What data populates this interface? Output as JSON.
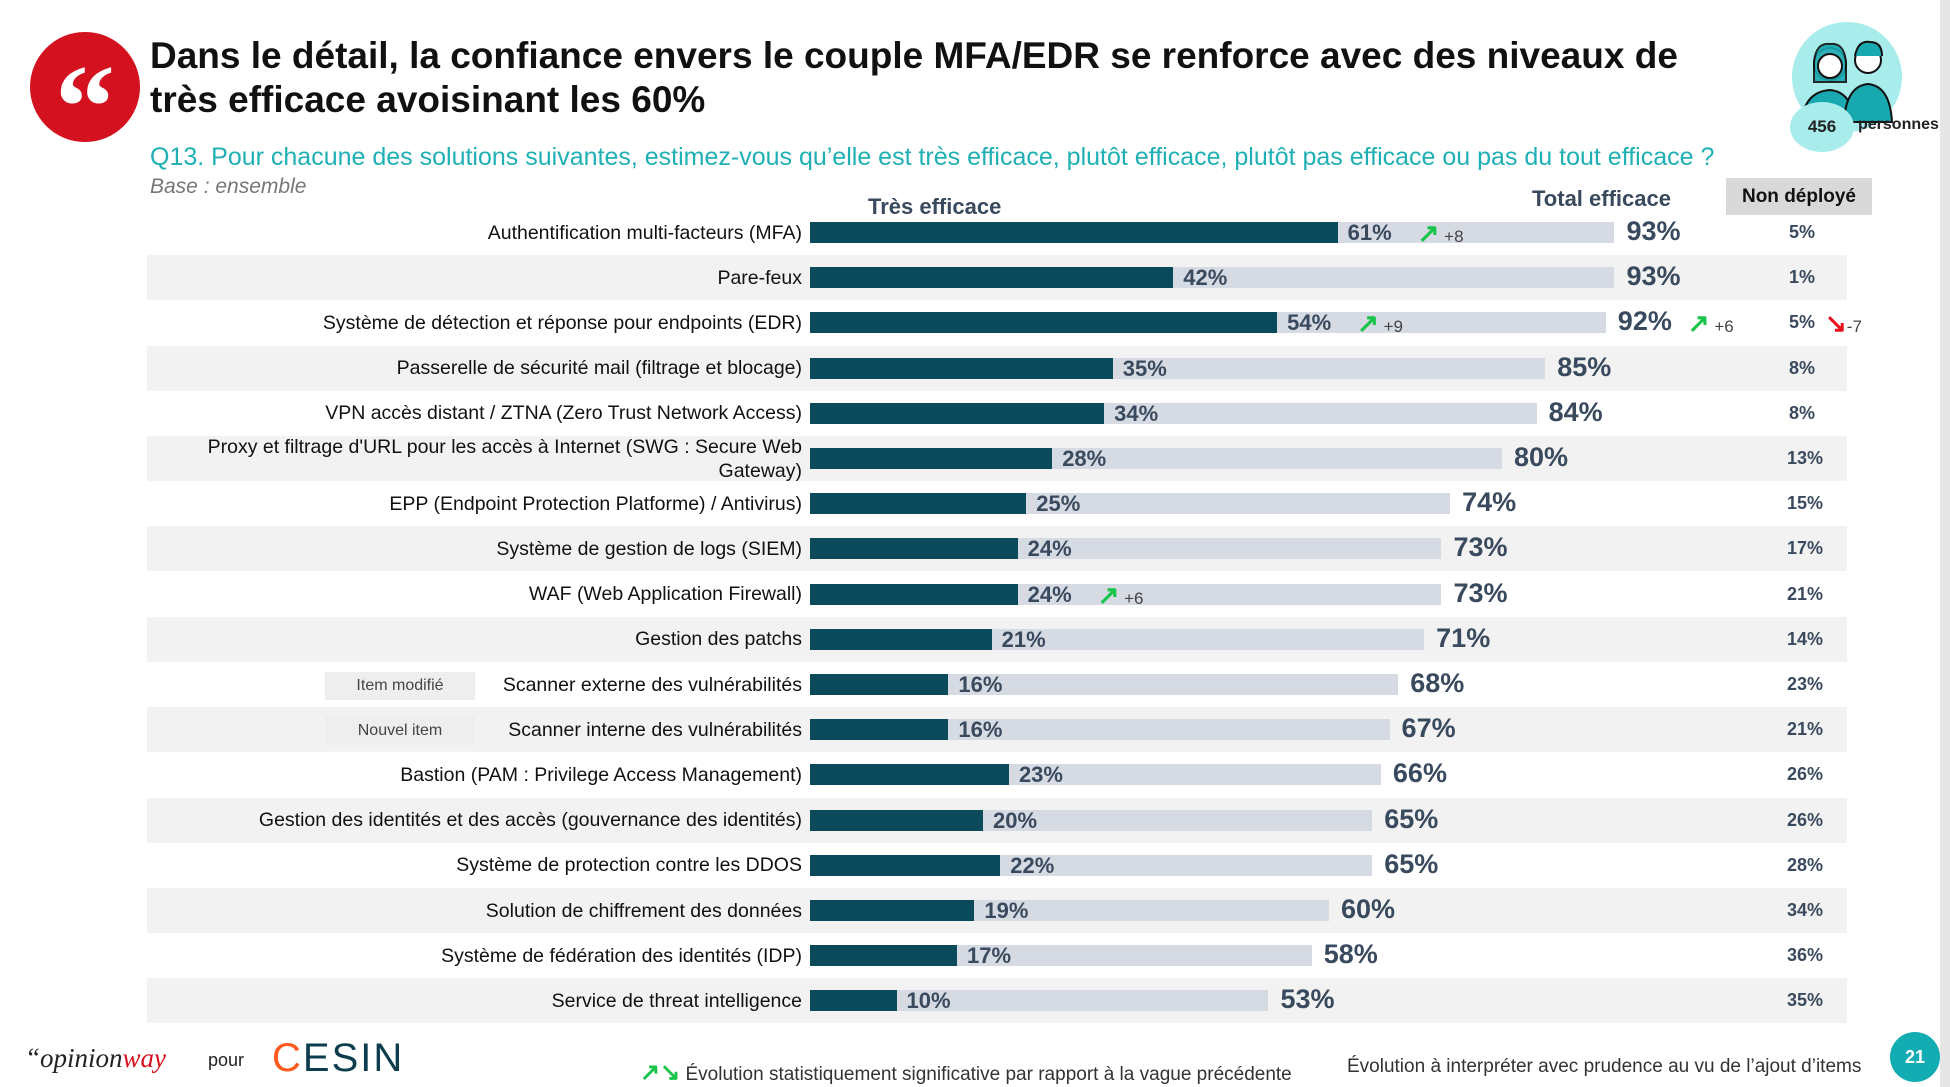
{
  "header": {
    "quote_glyph": "“",
    "title": "Dans le détail, la confiance envers le couple MFA/EDR se renforce avec des niveaux de très efficace avoisinant les 60%",
    "question": "Q13. Pour chacune des solutions suivantes, estimez-vous qu’elle est très efficace, plutôt efficace, plutôt pas efficace ou pas du tout efficace ?",
    "base": "Base : ensemble",
    "sample_count": "456",
    "sample_label": "personnes"
  },
  "chart_data": {
    "type": "bar",
    "column_headers": {
      "tres": "Très efficace",
      "total": "Total efficace",
      "non": "Non déployé"
    },
    "xlim": [
      0,
      100
    ],
    "colors": {
      "tres": "#0b4a5a",
      "total": "#d5dae3",
      "up": "#19c44a",
      "down": "#e8101e"
    },
    "rows": [
      {
        "label": "Authentification multi-facteurs (MFA)",
        "tres": 61,
        "total": 93,
        "non": 5,
        "tres_evo": "+8"
      },
      {
        "label": "Pare-feux",
        "tres": 42,
        "total": 93,
        "non": 1
      },
      {
        "label": "Système de détection et réponse pour endpoints (EDR)",
        "tres": 54,
        "total": 92,
        "non": 5,
        "tres_evo": "+9",
        "total_evo": "+6",
        "non_evo": "-7"
      },
      {
        "label": "Passerelle de sécurité mail (filtrage et blocage)",
        "tres": 35,
        "total": 85,
        "non": 8
      },
      {
        "label": "VPN accès distant / ZTNA (Zero Trust Network Access)",
        "tres": 34,
        "total": 84,
        "non": 8
      },
      {
        "label": "Proxy et filtrage d'URL pour les accès à Internet (SWG : Secure Web Gateway)",
        "tres": 28,
        "total": 80,
        "non": 13
      },
      {
        "label": "EPP (Endpoint Protection Platforme) / Antivirus)",
        "tres": 25,
        "total": 74,
        "non": 15
      },
      {
        "label": "Système de gestion de logs (SIEM)",
        "tres": 24,
        "total": 73,
        "non": 17
      },
      {
        "label": "WAF (Web Application Firewall)",
        "tres": 24,
        "total": 73,
        "non": 21,
        "tres_evo": "+6"
      },
      {
        "label": "Gestion des patchs",
        "tres": 21,
        "total": 71,
        "non": 14
      },
      {
        "label": "Scanner externe des vulnérabilités",
        "tres": 16,
        "total": 68,
        "non": 23,
        "tag": "Item modifié"
      },
      {
        "label": "Scanner interne des vulnérabilités",
        "tres": 16,
        "total": 67,
        "non": 21,
        "tag": "Nouvel item"
      },
      {
        "label": "Bastion (PAM : Privilege Access Management)",
        "tres": 23,
        "total": 66,
        "non": 26
      },
      {
        "label": "Gestion des identités et des accès (gouvernance des identités)",
        "tres": 20,
        "total": 65,
        "non": 26
      },
      {
        "label": "Système de protection contre les DDOS",
        "tres": 22,
        "total": 65,
        "non": 28
      },
      {
        "label": "Solution de chiffrement des données",
        "tres": 19,
        "total": 60,
        "non": 34
      },
      {
        "label": "Système de fédération des identités (IDP)",
        "tres": 17,
        "total": 58,
        "non": 36
      },
      {
        "label": "Service de threat intelligence",
        "tres": 10,
        "total": 53,
        "non": 35
      }
    ]
  },
  "footer": {
    "opinion_prefix": "“opinion",
    "opinion_suffix": "way",
    "pour": "pour",
    "cesin_c": "C",
    "cesin_rest": "ESIN",
    "legend_arrows": "↗↘",
    "legend_text": "Évolution statistiquement significative par rapport à la vague précédente",
    "legend_note": "Évolution à interpréter avec prudence au vu de l’ajout d’items",
    "page_number": "21"
  }
}
